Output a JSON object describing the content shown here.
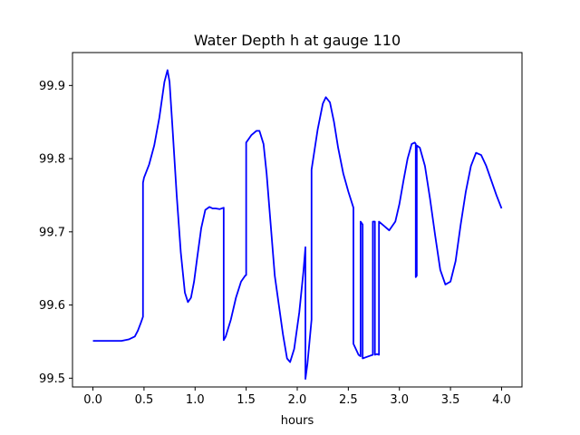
{
  "chart_data": {
    "type": "line",
    "title": "Water Depth h at gauge 110",
    "xlabel": "hours",
    "ylabel": "",
    "xlim": [
      -0.2,
      4.2
    ],
    "ylim": [
      99.488,
      99.945
    ],
    "xticks": [
      0.0,
      0.5,
      1.0,
      1.5,
      2.0,
      2.5,
      3.0,
      3.5,
      4.0
    ],
    "xtick_labels": [
      "0.0",
      "0.5",
      "1.0",
      "1.5",
      "2.0",
      "2.5",
      "3.0",
      "3.5",
      "4.0"
    ],
    "yticks": [
      99.5,
      99.6,
      99.7,
      99.8,
      99.9
    ],
    "ytick_labels": [
      "99.5",
      "99.6",
      "99.7",
      "99.8",
      "99.9"
    ],
    "grid": false,
    "color": "#0000ff",
    "series": [
      {
        "x": [
          0.0,
          0.1,
          0.2,
          0.28,
          0.35,
          0.41,
          0.44,
          0.47,
          0.49,
          0.49,
          0.5,
          0.55,
          0.6,
          0.65,
          0.7,
          0.73,
          0.75,
          0.78,
          0.82,
          0.86,
          0.9,
          0.93,
          0.96,
          0.99,
          1.02,
          1.06,
          1.1,
          1.14,
          1.17,
          1.2,
          1.24,
          1.28,
          1.28,
          1.3,
          1.35,
          1.4,
          1.45,
          1.49,
          1.5,
          1.5,
          1.55,
          1.6,
          1.63,
          1.67,
          1.7,
          1.74,
          1.78,
          1.82,
          1.86,
          1.9,
          1.93,
          1.97,
          2.02,
          2.06,
          2.08,
          2.08,
          2.1,
          2.14,
          2.14,
          2.14,
          2.2,
          2.25,
          2.28,
          2.32,
          2.36,
          2.4,
          2.45,
          2.5,
          2.55,
          2.55,
          2.58,
          2.6,
          2.62,
          2.62,
          2.64,
          2.64,
          2.7,
          2.74,
          2.74,
          2.76,
          2.76,
          2.78,
          2.8,
          2.8,
          2.85,
          2.9,
          2.96,
          3.0,
          3.04,
          3.08,
          3.12,
          3.15,
          3.16,
          3.16,
          3.17,
          3.17,
          3.2,
          3.25,
          3.3,
          3.35,
          3.4,
          3.45,
          3.5,
          3.55,
          3.6,
          3.65,
          3.7,
          3.75,
          3.8,
          3.85,
          3.9,
          3.95,
          4.0
        ],
        "y": [
          99.551,
          99.551,
          99.551,
          99.551,
          99.553,
          99.557,
          99.565,
          99.576,
          99.584,
          99.767,
          99.774,
          99.792,
          99.818,
          99.856,
          99.905,
          99.921,
          99.905,
          99.84,
          99.75,
          99.672,
          99.617,
          99.604,
          99.61,
          99.632,
          99.664,
          99.705,
          99.73,
          99.734,
          99.732,
          99.732,
          99.731,
          99.733,
          99.552,
          99.557,
          99.58,
          99.61,
          99.632,
          99.64,
          99.641,
          99.822,
          99.832,
          99.838,
          99.838,
          99.82,
          99.78,
          99.71,
          99.64,
          99.6,
          99.56,
          99.527,
          99.522,
          99.54,
          99.59,
          99.645,
          99.679,
          99.499,
          99.52,
          99.58,
          99.6,
          99.785,
          99.84,
          99.875,
          99.884,
          99.877,
          99.85,
          99.815,
          99.78,
          99.755,
          99.733,
          99.547,
          99.538,
          99.532,
          99.53,
          99.714,
          99.71,
          99.527,
          99.53,
          99.532,
          99.714,
          99.714,
          99.532,
          99.533,
          99.532,
          99.714,
          99.708,
          99.702,
          99.714,
          99.738,
          99.77,
          99.8,
          99.82,
          99.822,
          99.82,
          99.638,
          99.64,
          99.818,
          99.815,
          99.79,
          99.745,
          99.695,
          99.648,
          99.628,
          99.632,
          99.66,
          99.71,
          99.755,
          99.79,
          99.808,
          99.805,
          99.79,
          99.77,
          99.75,
          99.732
        ]
      }
    ]
  }
}
